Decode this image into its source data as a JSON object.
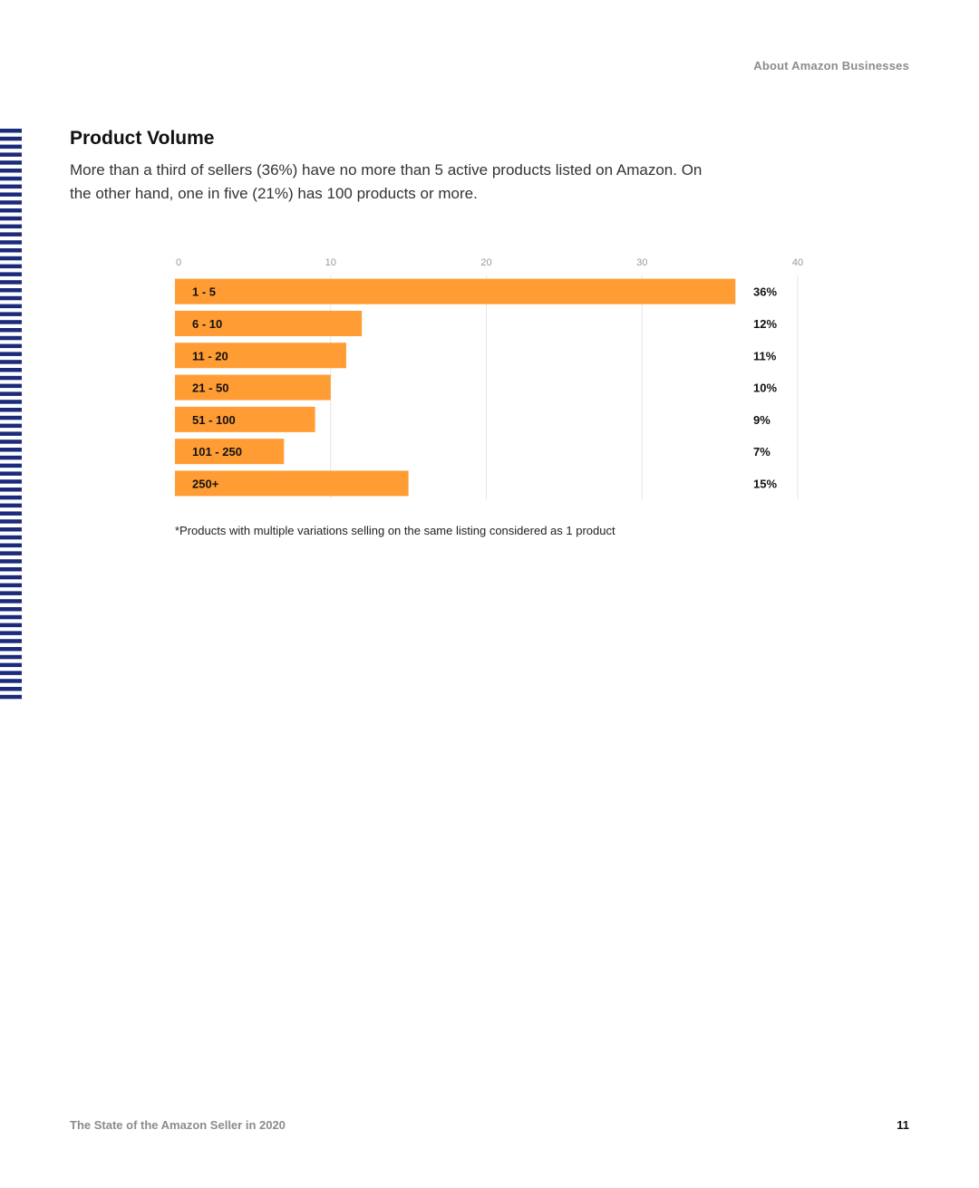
{
  "header": {
    "section": "About Amazon Businesses"
  },
  "content": {
    "title": "Product Volume",
    "intro": "More than a third of sellers (36%) have no more than 5 active products listed on Amazon. On the other hand, one in five (21%) has 100 products or more."
  },
  "colors": {
    "bar": "#ff9c33",
    "stripes": "#1a2a7c",
    "grid": "#e6e6e6"
  },
  "chart_data": {
    "type": "bar",
    "orientation": "horizontal",
    "title": "",
    "xlabel": "",
    "ylabel": "",
    "categories": [
      "1 - 5",
      "6 - 10",
      "11 - 20",
      "21 - 50",
      "51 - 100",
      "101 - 250",
      "250+"
    ],
    "values": [
      36,
      12,
      11,
      10,
      9,
      7,
      15
    ],
    "value_labels": [
      "36%",
      "12%",
      "11%",
      "10%",
      "9%",
      "7%",
      "15%"
    ],
    "xticks": [
      0,
      10,
      20,
      30,
      40
    ],
    "xlim": [
      0,
      40
    ],
    "grid": true,
    "legend": "none"
  },
  "footnote": "*Products with multiple variations selling on the same listing considered as 1 product",
  "footer": {
    "report": "The State of the Amazon Seller in 2020",
    "page": "11"
  }
}
